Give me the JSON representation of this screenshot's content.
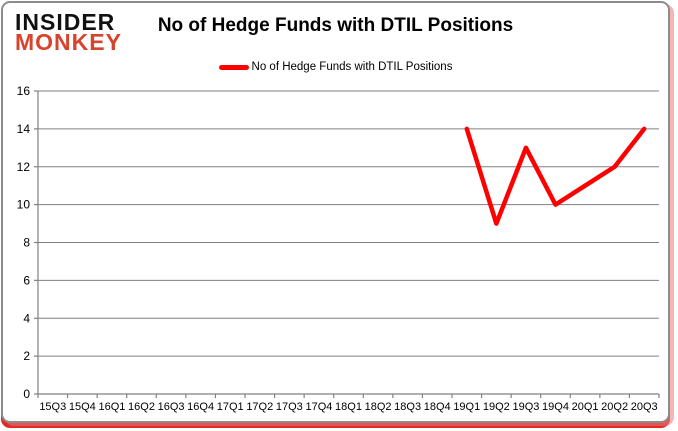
{
  "logo": {
    "line1": "INSIDER",
    "line2": "MONKEY",
    "line1_color": "#111111",
    "line2_color": "#d8432c"
  },
  "header": {
    "title": "No of Hedge Funds with DTIL Positions"
  },
  "legend": {
    "label": "No of Hedge Funds with DTIL Positions",
    "swatch_color": "#ff0000"
  },
  "chart_data": {
    "type": "line",
    "title": "No of Hedge Funds with DTIL Positions",
    "categories": [
      "15Q3",
      "15Q4",
      "16Q1",
      "16Q2",
      "16Q3",
      "16Q4",
      "17Q1",
      "17Q2",
      "17Q3",
      "17Q4",
      "18Q1",
      "18Q2",
      "18Q3",
      "18Q4",
      "19Q1",
      "19Q2",
      "19Q3",
      "19Q4",
      "20Q1",
      "20Q2",
      "20Q3"
    ],
    "series": [
      {
        "name": "No of Hedge Funds with DTIL Positions",
        "color": "#ff0000",
        "values": [
          null,
          null,
          null,
          null,
          null,
          null,
          null,
          null,
          null,
          null,
          null,
          null,
          null,
          null,
          14,
          9,
          13,
          10,
          11,
          12,
          14
        ]
      }
    ],
    "ylim": [
      0,
      16
    ],
    "ytick_step": 2,
    "grid": true,
    "legend_position": "top-center",
    "grid_color": "#808080",
    "axis_color": "#808080",
    "tick_label_color": "#000000"
  },
  "frame": {
    "background": "#ffffff",
    "border_color": "#8c8c8c",
    "shadow_color": "#de2d26"
  }
}
